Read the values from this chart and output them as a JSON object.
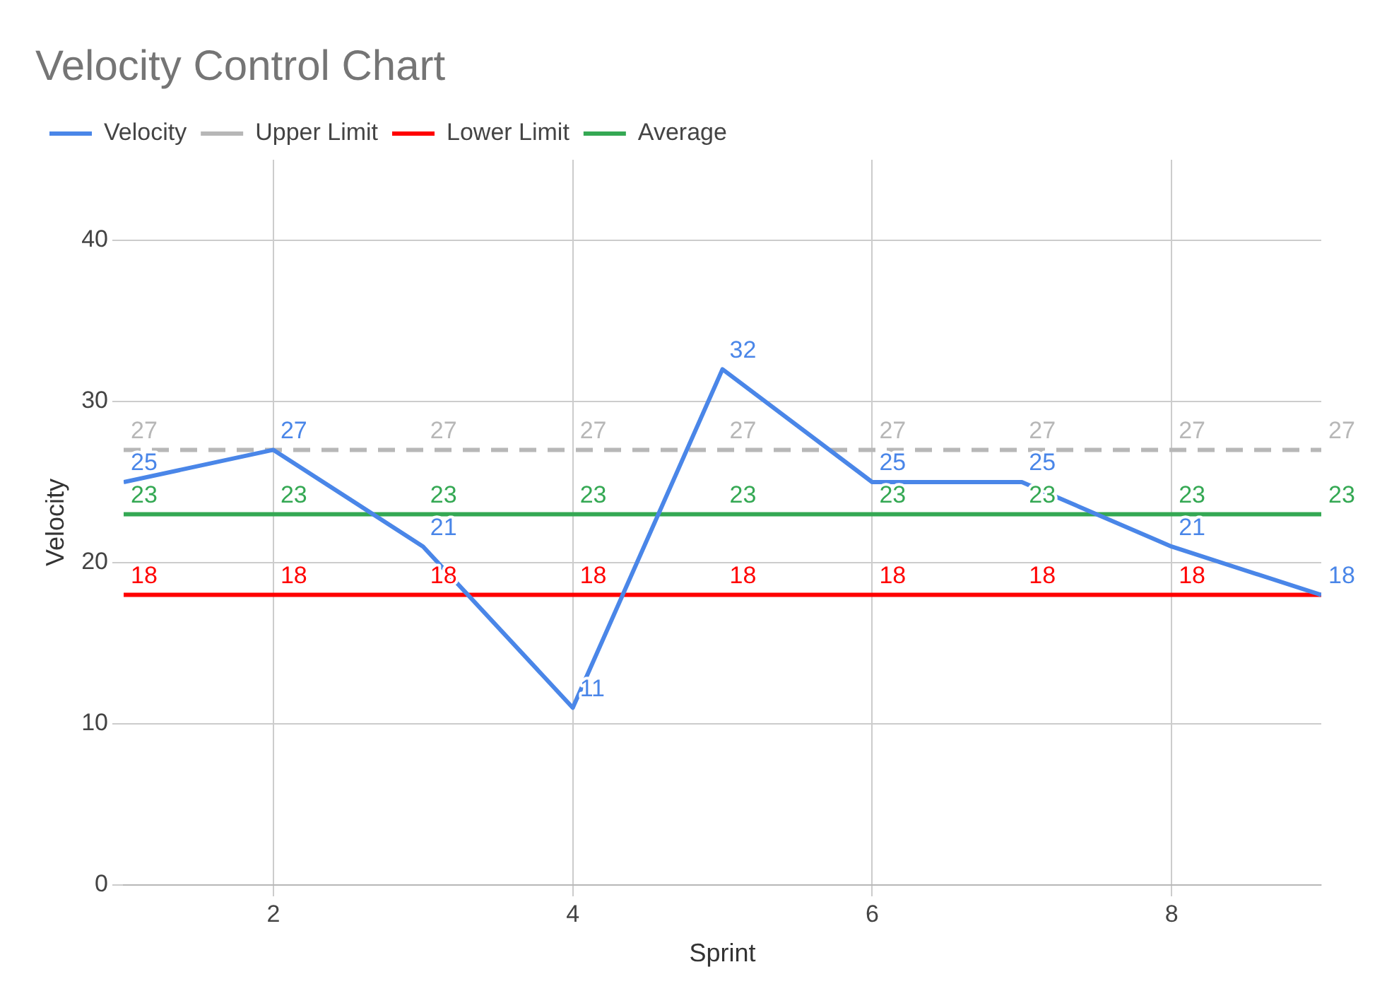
{
  "chart_data": {
    "type": "line",
    "title": "Velocity Control Chart",
    "xlabel": "Sprint",
    "ylabel": "Velocity",
    "x": [
      1,
      2,
      3,
      4,
      5,
      6,
      7,
      8,
      9
    ],
    "xlim": [
      1,
      9
    ],
    "xticks": [
      2,
      4,
      6,
      8
    ],
    "ylim": [
      0,
      45
    ],
    "yticks": [
      0,
      10,
      20,
      30,
      40
    ],
    "series": [
      {
        "name": "Velocity",
        "color": "#4a86e8",
        "values": [
          25,
          27,
          21,
          11,
          32,
          25,
          25,
          21,
          18
        ]
      },
      {
        "name": "Upper Limit",
        "color": "#b7b7b7",
        "line_style": "dashed",
        "values": [
          27,
          27,
          27,
          27,
          27,
          27,
          27,
          27,
          27
        ],
        "value_labels": [
          "27",
          null,
          "27",
          "27",
          "27",
          "27",
          "27",
          "27",
          "27"
        ]
      },
      {
        "name": "Lower Limit",
        "color": "#ff0000",
        "values": [
          18,
          18,
          18,
          18,
          18,
          18,
          18,
          18,
          18
        ],
        "value_labels": [
          "18",
          "18",
          "18",
          "18",
          "18",
          "18",
          "18",
          "18",
          null
        ]
      },
      {
        "name": "Average",
        "color": "#34a853",
        "values": [
          23,
          23,
          23,
          23,
          23,
          23,
          23,
          23,
          23
        ]
      }
    ],
    "data_labels": true,
    "grid": true,
    "legend": "top",
    "marker": "none"
  }
}
